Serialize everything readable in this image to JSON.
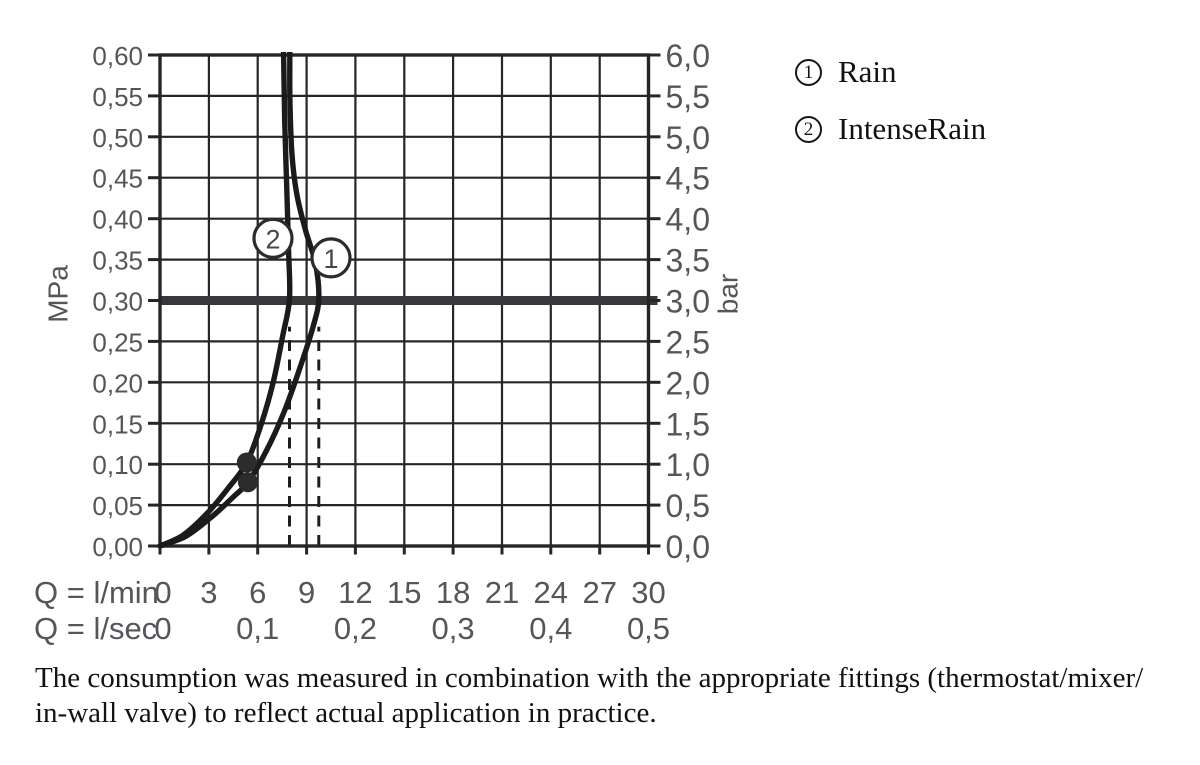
{
  "legend": {
    "items": [
      {
        "marker": "1",
        "label": "Rain"
      },
      {
        "marker": "2",
        "label": "IntenseRain"
      }
    ]
  },
  "caption": {
    "line1": "The consumption was measured in combination with the appropriate fittings (thermostat/mixer/",
    "line2": "in-wall valve) to reflect actual application in practice."
  },
  "chart_data": {
    "type": "line",
    "title": "",
    "x_axis": {
      "unit_primary": "Q = l/min",
      "unit_secondary": "Q = l/sec",
      "range_lmin": [
        0,
        30
      ],
      "lmin_ticks": [
        "0",
        "3",
        "6",
        "9",
        "12",
        "15",
        "18",
        "21",
        "24",
        "27",
        "30"
      ],
      "lsec_ticks": [
        {
          "lmin": 0,
          "label": "0"
        },
        {
          "lmin": 6,
          "label": "0,1"
        },
        {
          "lmin": 12,
          "label": "0,2"
        },
        {
          "lmin": 18,
          "label": "0,3"
        },
        {
          "lmin": 24,
          "label": "0,4"
        },
        {
          "lmin": 30,
          "label": "0,5"
        }
      ]
    },
    "y_axis_left": {
      "unit": "MPa",
      "range_mpa": [
        0,
        0.6
      ],
      "step": 0.05,
      "tick_labels": [
        "0,60",
        "0,55",
        "0,50",
        "0,45",
        "0,40",
        "0,35",
        "0,30",
        "0,25",
        "0,20",
        "0,15",
        "0,10",
        "0,05",
        "0,00"
      ]
    },
    "y_axis_right": {
      "unit": "bar",
      "range_bar": [
        0,
        6
      ],
      "step": 0.5,
      "tick_labels": [
        "6,0",
        "5,5",
        "5,0",
        "4,5",
        "4,0",
        "3,5",
        "3,0",
        "2,5",
        "2,0",
        "1,5",
        "1,0",
        "0,5",
        "0,0"
      ]
    },
    "grid": true,
    "reference_line": {
      "mpa": 0.3,
      "bar": 3.0
    },
    "dashed_guides": [
      {
        "lmin": 7.95,
        "top_mpa": 0.268
      },
      {
        "lmin": 9.75,
        "top_mpa": 0.268
      }
    ],
    "series": [
      {
        "id": "1",
        "name": "Rain",
        "points_lmin_mpa": [
          [
            0,
            0
          ],
          [
            1.6,
            0.012
          ],
          [
            3.2,
            0.036
          ],
          [
            4.5,
            0.06
          ],
          [
            5.4,
            0.078
          ],
          [
            6.5,
            0.115
          ],
          [
            7.6,
            0.163
          ],
          [
            8.6,
            0.218
          ],
          [
            9.4,
            0.268
          ],
          [
            9.75,
            0.302
          ],
          [
            9.55,
            0.345
          ],
          [
            8.95,
            0.385
          ],
          [
            8.4,
            0.43
          ],
          [
            8.1,
            0.48
          ],
          [
            7.98,
            0.545
          ],
          [
            7.98,
            0.62
          ]
        ],
        "marker_dot_lmin_mpa": [
          5.4,
          0.078
        ],
        "label_circle_lmin_mpa": [
          10.5,
          0.352
        ],
        "flow_at_03mpa_lmin": 9.75
      },
      {
        "id": "2",
        "name": "IntenseRain",
        "points_lmin_mpa": [
          [
            0,
            0
          ],
          [
            1.4,
            0.013
          ],
          [
            2.9,
            0.04
          ],
          [
            4.2,
            0.071
          ],
          [
            5.33,
            0.102
          ],
          [
            6.2,
            0.148
          ],
          [
            6.95,
            0.2
          ],
          [
            7.55,
            0.258
          ],
          [
            7.95,
            0.302
          ],
          [
            7.9,
            0.36
          ],
          [
            7.78,
            0.44
          ],
          [
            7.66,
            0.52
          ],
          [
            7.58,
            0.62
          ]
        ],
        "marker_dot_lmin_mpa": [
          5.33,
          0.102
        ],
        "label_circle_lmin_mpa": [
          6.94,
          0.376
        ],
        "flow_at_03mpa_lmin": 7.95
      }
    ],
    "colors": {
      "grid": "#262626",
      "curve": "#1b1b1b",
      "reference_line": "#38383c",
      "axis_text": "#55565a",
      "dot": "#2c2c2e",
      "text": "#121212"
    }
  }
}
